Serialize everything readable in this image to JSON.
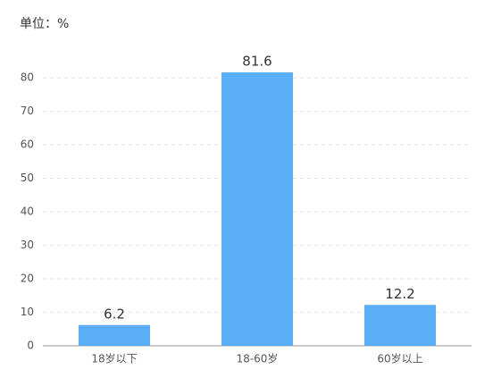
{
  "chart_data": {
    "type": "bar",
    "title": "单位：%",
    "categories": [
      "18岁以下",
      "18-60岁",
      "60岁以上"
    ],
    "values": [
      6.2,
      81.6,
      12.2
    ],
    "color": "#5aaef5",
    "ylim": [
      0,
      80
    ],
    "yticks": [
      0,
      10,
      20,
      30,
      40,
      50,
      60,
      70,
      80
    ],
    "grid": true
  }
}
